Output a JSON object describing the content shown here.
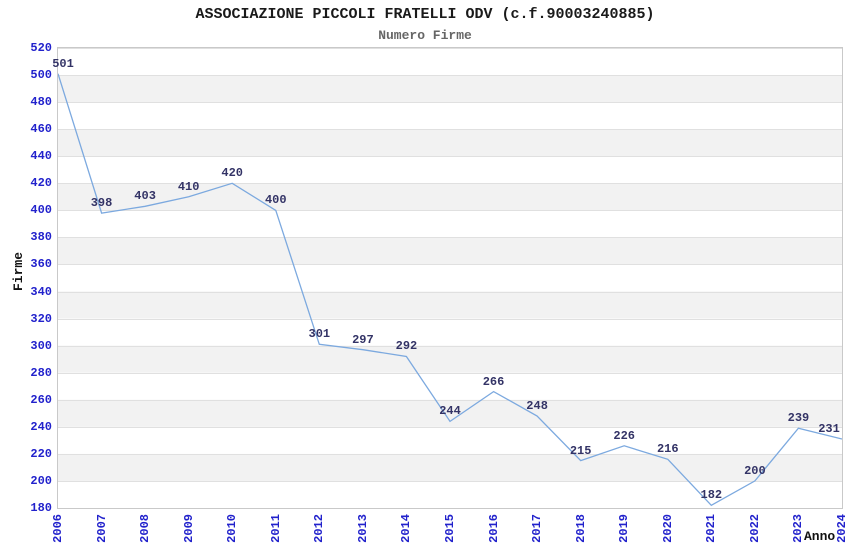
{
  "chart_data": {
    "type": "line",
    "title": "ASSOCIAZIONE PICCOLI FRATELLI ODV (c.f.90003240885)",
    "subtitle": "Numero Firme",
    "xlabel": "Anno",
    "ylabel": "Firme",
    "x": [
      "2006",
      "2007",
      "2008",
      "2009",
      "2010",
      "2011",
      "2012",
      "2013",
      "2014",
      "2015",
      "2016",
      "2017",
      "2018",
      "2019",
      "2020",
      "2021",
      "2022",
      "2023",
      "2024"
    ],
    "values": [
      501,
      398,
      403,
      410,
      420,
      400,
      301,
      297,
      292,
      244,
      266,
      248,
      215,
      226,
      216,
      182,
      200,
      239,
      231
    ],
    "ylim": [
      180,
      520
    ],
    "ytick_step": 20,
    "grid": "horizontal",
    "bands": "alternating",
    "legend": false,
    "point_labels": true,
    "markers": false
  },
  "colors": {
    "line": "#7ca9df",
    "tick_label": "#2222cc",
    "point_label": "#333366",
    "band": "#f2f2f2",
    "grid": "#e0e0e0",
    "plot_border": "#c9c9c9",
    "title": "#1a1a1a",
    "subtitle": "#666666",
    "axis_title": "#111111",
    "background": "#ffffff"
  }
}
